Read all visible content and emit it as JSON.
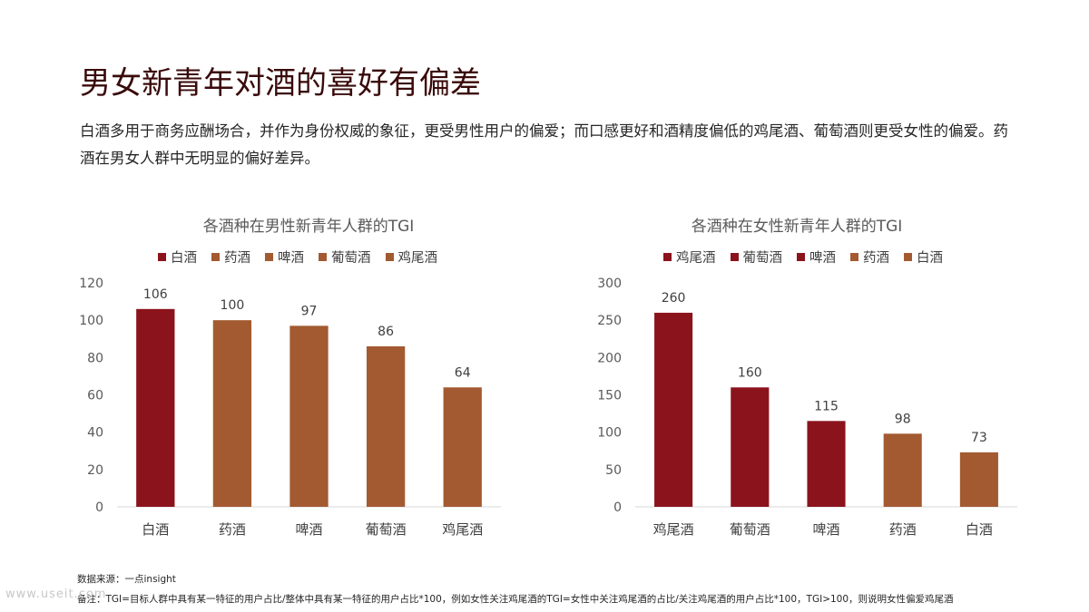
{
  "page": {
    "title": "男女新青年对酒的喜好有偏差",
    "subtitle": "白酒多用于商务应酬场合，并作为身份权威的象征，更受男性用户的偏爱；而口感更好和酒精度偏低的鸡尾酒、葡萄酒则更受女性的偏爱。药酒在男女人群中无明显的偏好差异。",
    "source": "数据来源：一点insight",
    "note": "备注：TGI=目标人群中具有某一特征的用户占比/整体中具有某一特征的用户占比*100，例如女性关注鸡尾酒的TGI=女性中关注鸡尾酒的占比/关注鸡尾酒的用户占比*100，TGI>100，则说明女性偏爱鸡尾酒",
    "watermark": "www.useit.com"
  },
  "colors": {
    "dark_red": "#8B131C",
    "brown": "#A35A31",
    "axis_text": "#595959",
    "label_text": "#404040"
  },
  "chart_data": [
    {
      "type": "bar",
      "title": "各酒种在男性新青年人群的TGI",
      "categories": [
        "白酒",
        "药酒",
        "啤酒",
        "葡萄酒",
        "鸡尾酒"
      ],
      "values": [
        106,
        100,
        97,
        86,
        64
      ],
      "bar_colors": [
        "#8B131C",
        "#A35A31",
        "#A35A31",
        "#A35A31",
        "#A35A31"
      ],
      "legend": [
        {
          "label": "白酒",
          "color": "#8B131C"
        },
        {
          "label": "药酒",
          "color": "#A35A31"
        },
        {
          "label": "啤酒",
          "color": "#A35A31"
        },
        {
          "label": "葡萄酒",
          "color": "#A35A31"
        },
        {
          "label": "鸡尾酒",
          "color": "#A35A31"
        }
      ],
      "ylim": [
        0,
        120
      ],
      "yticks": [
        0,
        20,
        40,
        60,
        80,
        100,
        120
      ],
      "grid": false,
      "legend_position": "top"
    },
    {
      "type": "bar",
      "title": "各酒种在女性新青年人群的TGI",
      "categories": [
        "鸡尾酒",
        "葡萄酒",
        "啤酒",
        "药酒",
        "白酒"
      ],
      "values": [
        260,
        160,
        115,
        98,
        73
      ],
      "bar_colors": [
        "#8B131C",
        "#8B131C",
        "#8B131C",
        "#A35A31",
        "#A35A31"
      ],
      "legend": [
        {
          "label": "鸡尾酒",
          "color": "#8B131C"
        },
        {
          "label": "葡萄酒",
          "color": "#8B131C"
        },
        {
          "label": "啤酒",
          "color": "#8B131C"
        },
        {
          "label": "药酒",
          "color": "#A35A31"
        },
        {
          "label": "白酒",
          "color": "#A35A31"
        }
      ],
      "ylim": [
        0,
        300
      ],
      "yticks": [
        0,
        50,
        100,
        150,
        200,
        250,
        300
      ],
      "grid": false,
      "legend_position": "top"
    }
  ]
}
